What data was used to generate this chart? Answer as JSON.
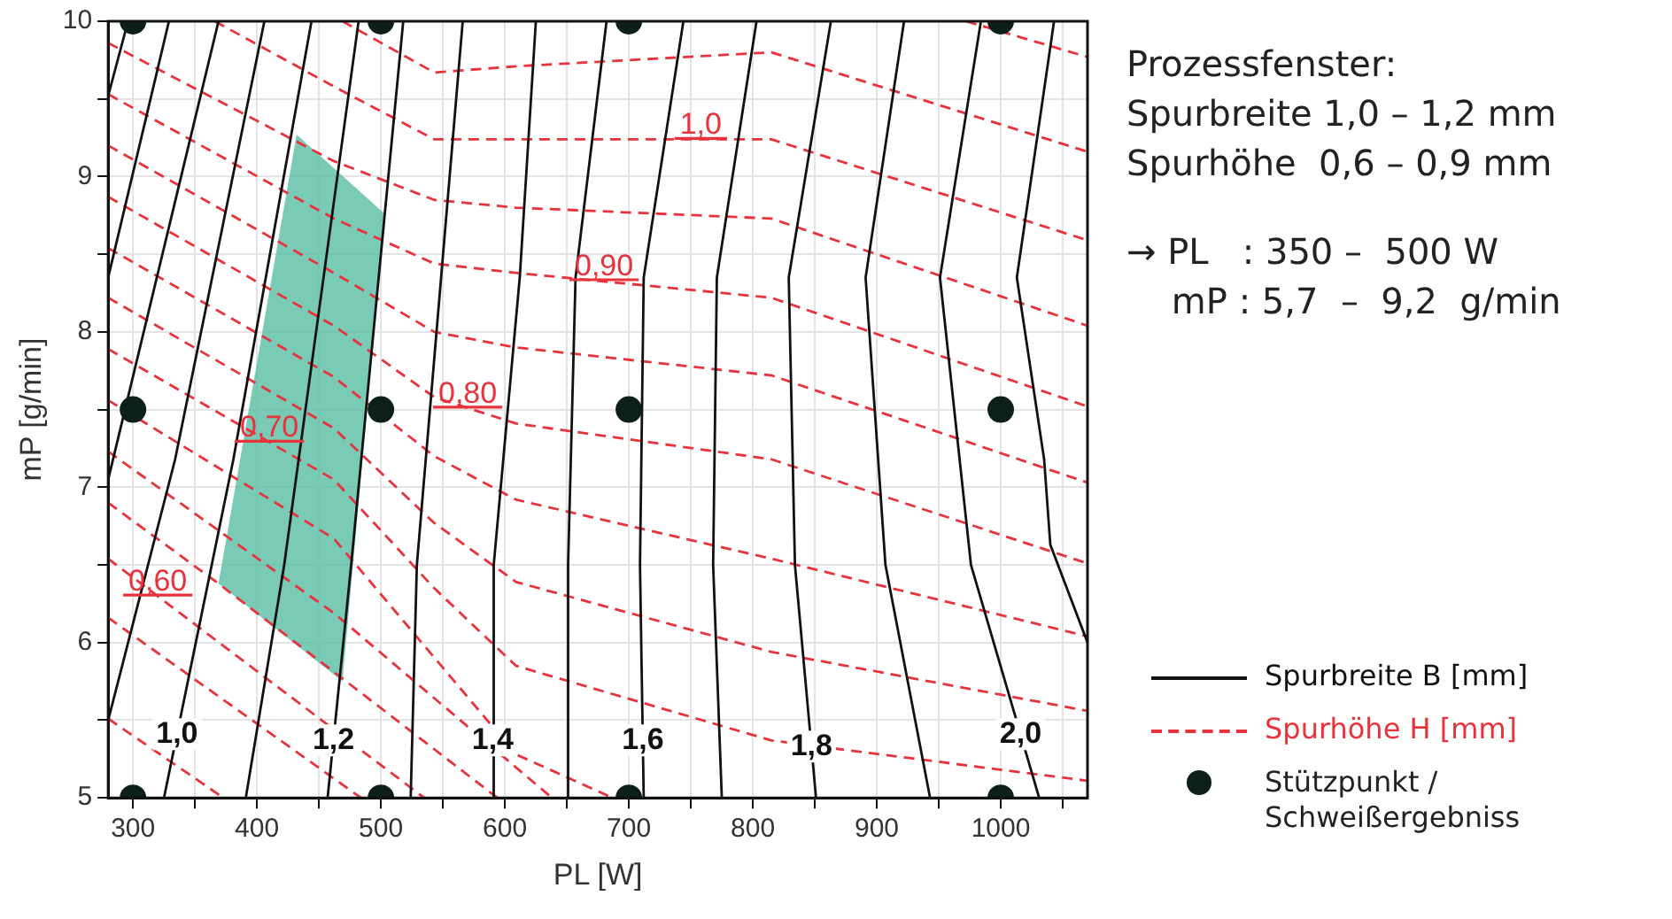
{
  "chart_data": {
    "type": "line",
    "xlabel": "PL [W]",
    "ylabel": "mP [g/min]",
    "xlim": [
      280,
      1070
    ],
    "ylim": [
      5,
      10
    ],
    "xticks": [
      300,
      {
        "value": 350,
        "label": null
      },
      400,
      {
        "value": 450,
        "label": null
      },
      500,
      {
        "value": 550,
        "label": null
      },
      600,
      {
        "value": 650,
        "label": null
      },
      700,
      {
        "value": 750,
        "label": null
      },
      800,
      {
        "value": 850,
        "label": null
      },
      900,
      {
        "value": 950,
        "label": null
      },
      1000,
      {
        "value": 1050,
        "label": null
      }
    ],
    "yticks": [
      5,
      {
        "value": 5.5,
        "label": null
      },
      6,
      {
        "value": 6.5,
        "label": null
      },
      7,
      {
        "value": 7.5,
        "label": null
      },
      8,
      {
        "value": 8.5,
        "label": null
      },
      9,
      {
        "value": 9.5,
        "label": null
      },
      10
    ],
    "grid": true,
    "legend": "bottom right",
    "series": [
      {
        "type": "area",
        "color": "#5cbfa5",
        "x": [
          432,
          503,
          469,
          369
        ],
        "values": [
          9.27,
          8.76,
          5.75,
          6.38
        ]
      },
      {
        "name": "Spurbreite B [mm]",
        "color": "#111111",
        "line_style": "solid",
        "x": [
          280,
          296
        ],
        "values": [
          9.52,
          10
        ]
      },
      {
        "color": "#111111",
        "line_style": "solid",
        "x": [
          280,
          329
        ],
        "values": [
          8.35,
          10
        ]
      },
      {
        "color": "#111111",
        "line_style": "solid",
        "x": [
          280,
          369
        ],
        "values": [
          7.05,
          10
        ]
      },
      {
        "color": "#111111",
        "line_style": "solid",
        "x": [
          280,
          334,
          406
        ],
        "values": [
          5.5,
          7.18,
          10
        ]
      },
      {
        "color": "#111111",
        "line_style": "solid",
        "x": [
          325,
          381,
          444
        ],
        "values": [
          5,
          7.18,
          10
        ]
      },
      {
        "color": "#111111",
        "line_style": "solid",
        "x": [
          391,
          422,
          482
        ],
        "values": [
          5,
          6.5,
          10
        ]
      },
      {
        "color": "#111111",
        "line_style": "solid",
        "x": [
          457,
          476,
          518
        ],
        "values": [
          5,
          6.5,
          10
        ]
      },
      {
        "color": "#111111",
        "line_style": "solid",
        "x": [
          524,
          529,
          566
        ],
        "values": [
          5,
          6.5,
          10
        ]
      },
      {
        "color": "#111111",
        "line_style": "solid",
        "x": [
          590,
          591,
          612,
          625
        ],
        "values": [
          5,
          6.5,
          8.35,
          10
        ]
      },
      {
        "color": "#111111",
        "line_style": "solid",
        "x": [
          650,
          651,
          657,
          682
        ],
        "values": [
          5,
          6.5,
          8.35,
          10
        ]
      },
      {
        "color": "#111111",
        "line_style": "solid",
        "x": [
          712,
          709,
          712,
          744
        ],
        "values": [
          5,
          6.5,
          8.35,
          10
        ]
      },
      {
        "color": "#111111",
        "line_style": "solid",
        "x": [
          775,
          768,
          771,
          803
        ],
        "values": [
          5,
          6.5,
          8.35,
          10
        ]
      },
      {
        "color": "#111111",
        "line_style": "solid",
        "x": [
          851,
          834,
          829,
          863
        ],
        "values": [
          5,
          6.5,
          8.35,
          10
        ]
      },
      {
        "color": "#111111",
        "line_style": "solid",
        "x": [
          943,
          907,
          891,
          922
        ],
        "values": [
          5,
          6.5,
          8.35,
          10
        ]
      },
      {
        "color": "#111111",
        "line_style": "solid",
        "x": [
          1031,
          976,
          951,
          984
        ],
        "values": [
          5,
          6.5,
          8.35,
          10
        ]
      },
      {
        "color": "#111111",
        "line_style": "solid",
        "x": [
          1070,
          1040,
          1035,
          1013,
          1043
        ],
        "values": [
          6.0,
          6.63,
          7.18,
          8.35,
          10
        ]
      },
      {
        "name": "Spurhöhe H [mm]",
        "color": "#e8323c",
        "line_style": "dashed",
        "x": [
          469,
          543,
          609,
          815,
          1070
        ],
        "values": [
          10,
          9.67,
          9.71,
          9.8,
          9.16
        ]
      },
      {
        "color": "#e8323c",
        "line_style": "dashed",
        "x": [
          366,
          462,
          543,
          609,
          815,
          1070
        ],
        "values": [
          10,
          9.58,
          9.24,
          9.24,
          9.24,
          8.59
        ]
      },
      {
        "color": "#e8323c",
        "line_style": "dashed",
        "x": [
          280,
          462,
          543,
          609,
          815,
          1070
        ],
        "values": [
          9.86,
          9.1,
          8.85,
          8.8,
          8.73,
          8.04
        ]
      },
      {
        "color": "#e8323c",
        "line_style": "dashed",
        "x": [
          280,
          462,
          543,
          609,
          815,
          1070
        ],
        "values": [
          9.53,
          8.73,
          8.44,
          8.38,
          8.22,
          7.52
        ]
      },
      {
        "color": "#e8323c",
        "line_style": "dashed",
        "x": [
          280,
          462,
          543,
          609,
          815,
          1070
        ],
        "values": [
          9.2,
          8.38,
          8.0,
          7.9,
          7.72,
          7.03
        ]
      },
      {
        "color": "#e8323c",
        "line_style": "dashed",
        "x": [
          280,
          462,
          543,
          609,
          815,
          1070
        ],
        "values": [
          8.87,
          8.04,
          7.58,
          7.41,
          7.18,
          6.51
        ]
      },
      {
        "color": "#e8323c",
        "line_style": "dashed",
        "x": [
          280,
          462,
          543,
          609,
          815,
          1070
        ],
        "values": [
          8.54,
          7.71,
          7.2,
          6.92,
          6.54,
          6.04
        ]
      },
      {
        "color": "#e8323c",
        "line_style": "dashed",
        "x": [
          280,
          462,
          543,
          609,
          815,
          1070
        ],
        "values": [
          8.22,
          7.38,
          6.77,
          6.39,
          5.94,
          5.56
        ]
      },
      {
        "color": "#e8323c",
        "line_style": "dashed",
        "x": [
          280,
          462,
          543,
          609,
          815,
          1070
        ],
        "values": [
          7.89,
          7.05,
          6.35,
          5.85,
          5.37,
          5.11
        ]
      },
      {
        "color": "#e8323c",
        "line_style": "dashed",
        "x": [
          280,
          462,
          609,
          687
        ],
        "values": [
          7.56,
          6.67,
          5.28,
          5
        ]
      },
      {
        "color": "#e8323c",
        "line_style": "dashed",
        "x": [
          280,
          462,
          638
        ],
        "values": [
          7.23,
          6.19,
          5
        ]
      },
      {
        "color": "#e8323c",
        "line_style": "dashed",
        "x": [
          280,
          369,
          472,
          594
        ],
        "values": [
          6.9,
          6.38,
          5.75,
          5
        ]
      },
      {
        "color": "#e8323c",
        "line_style": "dashed",
        "x": [
          280,
          535
        ],
        "values": [
          6.54,
          5
        ]
      },
      {
        "color": "#e8323c",
        "line_style": "dashed",
        "x": [
          280,
          484
        ],
        "values": [
          6.16,
          5
        ]
      },
      {
        "color": "#e8323c",
        "line_style": "dashed",
        "x": [
          280,
          373
        ],
        "values": [
          5.51,
          5
        ]
      },
      {
        "color": "#e8323c",
        "line_style": "dashed",
        "x": [
          972,
          1070
        ],
        "values": [
          10,
          9.77
        ]
      },
      {
        "name": "Stützpunkt / Schweißergebniss",
        "type": "scatter",
        "marker": "circle",
        "color": "#0d1f1a",
        "x": [
          300,
          500,
          700,
          1000,
          300,
          500,
          700,
          1000,
          300,
          500,
          700,
          1000
        ],
        "values": [
          5,
          5,
          5,
          5,
          7.5,
          7.5,
          7.5,
          7.5,
          10,
          10,
          10,
          10
        ]
      }
    ],
    "annotations": [
      {
        "text": "1,0",
        "x": 335.5,
        "y": 5.41
      },
      {
        "text": "1,2",
        "x": 461.7,
        "y": 5.37
      },
      {
        "text": "1,4",
        "x": 590.2,
        "y": 5.37
      },
      {
        "text": "1,6",
        "x": 711.3,
        "y": 5.37
      },
      {
        "text": "1,8",
        "x": 847.3,
        "y": 5.33
      },
      {
        "text": "2,0",
        "x": 1016,
        "y": 5.41
      },
      {
        "text": "0,60",
        "x": 320,
        "y": 6.3
      },
      {
        "text": "0,70",
        "x": 410,
        "y": 7.29
      },
      {
        "text": "0,80",
        "x": 570,
        "y": 7.51
      },
      {
        "text": "0,90",
        "x": 680,
        "y": 8.33
      },
      {
        "text": "1,0",
        "x": 758,
        "y": 9.24
      },
      "Prozessfenster:",
      "Spurbreite 1,0 – 1,2 mm",
      "Spurhöhe  0,6 – 0,9 mm",
      "→ PL   : 350 –  500 W",
      "    mP : 5,7  –  9,2  g/min"
    ]
  }
}
